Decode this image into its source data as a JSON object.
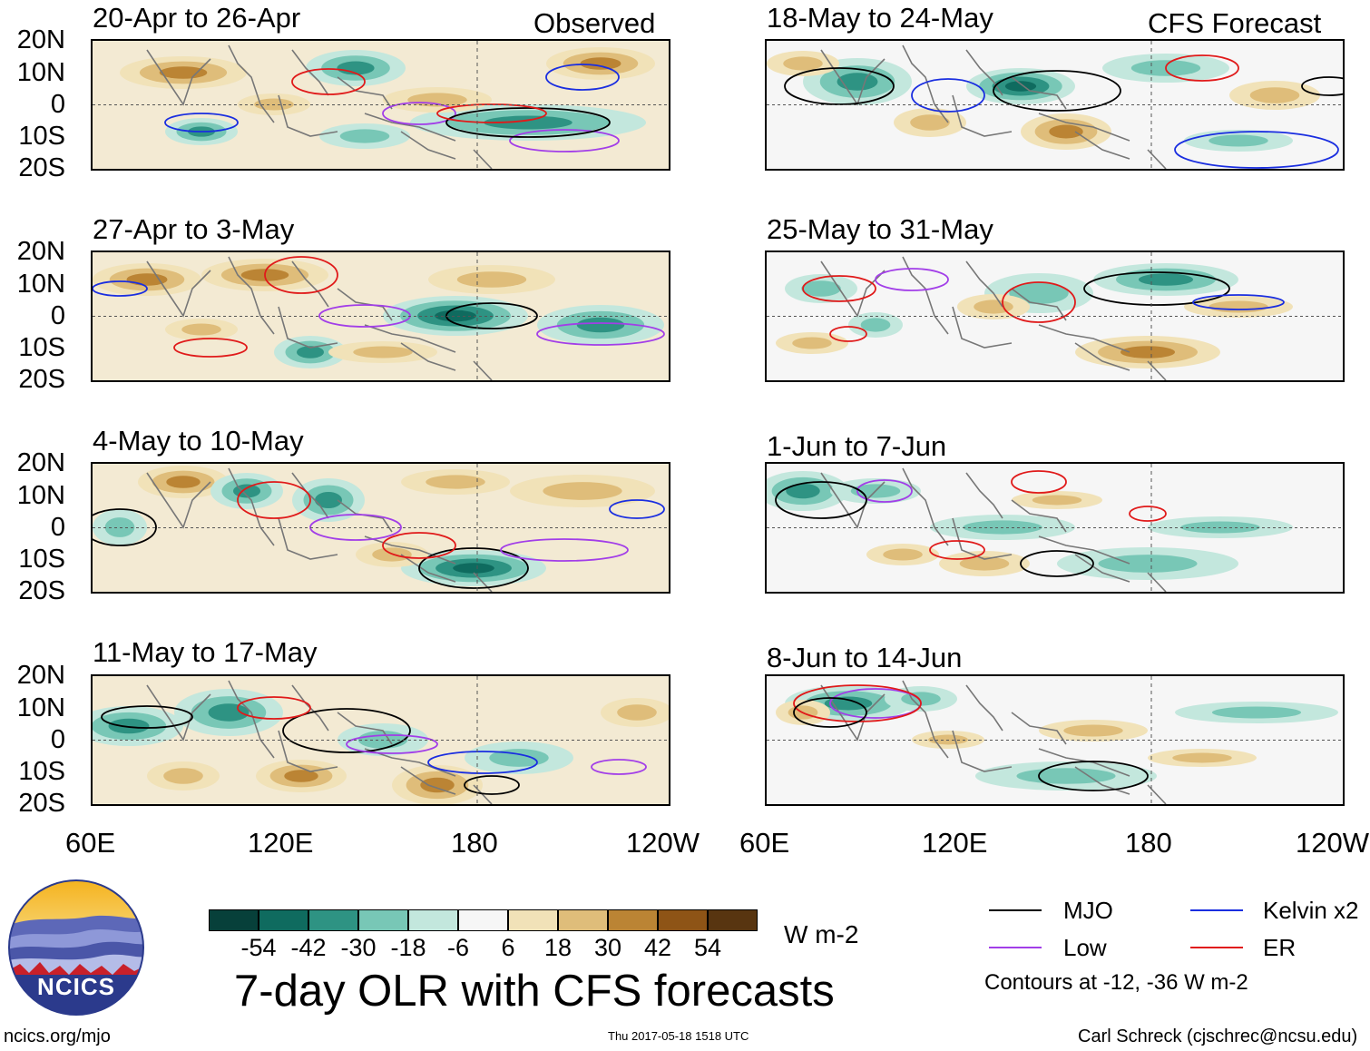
{
  "header": {
    "observed_label": "Observed",
    "forecast_label": "CFS Forecast"
  },
  "panels": {
    "observed": [
      {
        "title": "20-Apr to 26-Apr"
      },
      {
        "title": "27-Apr to 3-May"
      },
      {
        "title": "4-May to 10-May"
      },
      {
        "title": "11-May to 17-May"
      }
    ],
    "forecast": [
      {
        "title": "18-May to 24-May"
      },
      {
        "title": "25-May to 31-May"
      },
      {
        "title": "1-Jun to 7-Jun"
      },
      {
        "title": "8-Jun to 14-Jun"
      }
    ]
  },
  "axes": {
    "lat_labels": [
      "20N",
      "10N",
      "0",
      "10S",
      "20S"
    ],
    "lon_labels": [
      "60E",
      "120E",
      "180",
      "120W"
    ]
  },
  "colorbar": {
    "ticks": [
      "-54",
      "-42",
      "-30",
      "-18",
      "-6",
      "6",
      "18",
      "30",
      "42",
      "54"
    ],
    "units": "W m-2",
    "colors": [
      "#07403a",
      "#0f6b5f",
      "#2e9383",
      "#78c7b6",
      "#c3e7dd",
      "#f6f6f6",
      "#f1e2b8",
      "#dfbd7a",
      "#bb8434",
      "#8e5416",
      "#583510"
    ]
  },
  "legend": {
    "items": [
      {
        "label": "MJO",
        "color": "#000000"
      },
      {
        "label": "Kelvin x2",
        "color": "#1a2ee0"
      },
      {
        "label": "Low",
        "color": "#a23ee8"
      },
      {
        "label": "ER",
        "color": "#e01a1a"
      }
    ],
    "contour_note": "Contours at -12, -36 W m-2"
  },
  "logo": {
    "text": "NCICS"
  },
  "footer": {
    "main_title": "7-day OLR with CFS forecasts",
    "site": "ncics.org/mjo",
    "timestamp": "Thu 2017-05-18 1518 UTC",
    "credit": "Carl Schreck (cjschrec@ncsu.edu)"
  }
}
